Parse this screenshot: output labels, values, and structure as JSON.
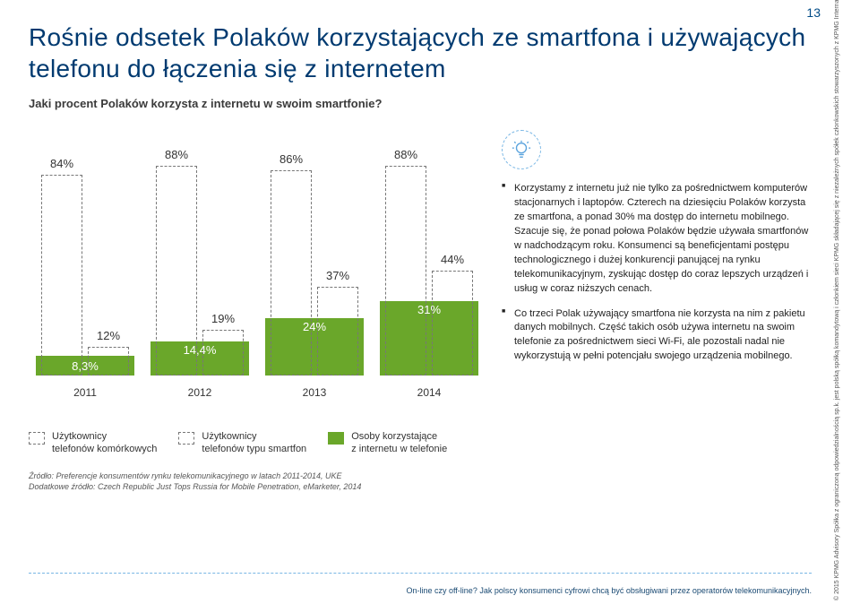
{
  "page_number": "13",
  "headline": "Rośnie odsetek Polaków korzystających ze smartfona i używających telefonu do łączenia się z internetem",
  "subhead": "Jaki procent Polaków korzysta z internetu w swoim smartfonie?",
  "chart": {
    "type": "bar",
    "years": [
      "2011",
      "2012",
      "2013",
      "2014"
    ],
    "series": {
      "mobile_users": {
        "label": "Użytkownicy\ntelefonów komórkowych",
        "values": [
          "84%",
          "88%",
          "86%",
          "88%"
        ],
        "heights": [
          224,
          234,
          229,
          234
        ],
        "fill": "dashed"
      },
      "smartphone_users": {
        "label": "Użytkownicy\ntelefonów typu smartfon",
        "values": [
          "12%",
          "19%",
          "37%",
          "44%"
        ],
        "heights": [
          32,
          51,
          99,
          117
        ],
        "fill": "dashed"
      },
      "internet_phone": {
        "label": "Osoby korzystające\nz internetu w telefonie",
        "values": [
          "8,3%",
          "14,4%",
          "24%",
          "31%"
        ],
        "heights": [
          22,
          38,
          64,
          83
        ],
        "fill": "#6aa72a"
      }
    },
    "group_x": [
      8,
      136,
      264,
      392
    ],
    "year_label_color": "#333",
    "bar_label_color": "#333",
    "dashed_border_color": "#777",
    "fill_color": "#6aa72a",
    "background_color": "#ffffff"
  },
  "legend": {
    "mobile": "Użytkownicy\ntelefonów komórkowych",
    "smart": "Użytkownicy\ntelefonów typu smartfon",
    "inet": "Osoby korzystające\nz internetu w telefonie"
  },
  "source_line1": "Źródło: Preferencje konsumentów rynku telekomunikacyjnego w latach 2011-2014, UKE",
  "source_line2": "Dodatkowe źródło: Czech Republic Just Tops Russia for Mobile Penetration, eMarketer, 2014",
  "bullets": [
    "Korzystamy z internetu już nie tylko za pośrednictwem komputerów stacjonarnych i laptopów. Czterech na dziesięciu Polaków korzysta ze smartfona, a ponad 30% ma dostęp do internetu mobilnego. Szacuje się, że ponad połowa Polaków będzie używała smartfonów w nadchodzącym roku. Konsumenci są beneficjentami postępu technologicznego i dużej konkurencji panującej na rynku telekomunikacyjnym, zyskując dostęp do coraz lepszych urządzeń i usług w coraz niższych cenach.",
    "Co trzeci Polak używający smartfona nie korzysta na nim z pakietu danych mobilnych. Część takich osób używa internetu na swoim telefonie za pośrednictwem sieci Wi-Fi, ale pozostali nadal nie wykorzystują w pełni potencjału swojego urządzenia mobilnego."
  ],
  "footer": "On-line czy off-line? Jak polscy konsumenci cyfrowi chcą być obsługiwani przez operatorów telekomunikacyjnych.",
  "copyright": "© 2015 KPMG Advisory Spółka z ograniczoną odpowiedzialnością sp.k. jest polską spółką komandytową i członkiem sieci KPMG składającej się z niezależnych spółek członkowskich stowarzyszonych z KPMG International Cooperative („KPMG International”), podmiotem prawa szwajcarskiego. Wszelkie prawa zastrzeżone."
}
